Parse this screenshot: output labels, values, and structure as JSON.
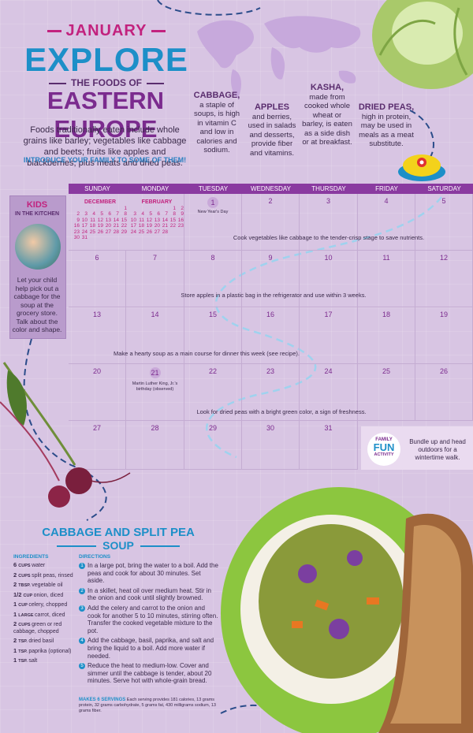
{
  "header": {
    "month": "JANUARY",
    "explore": "EXPLORE",
    "foods_of": "THE FOODS OF",
    "region": "EASTERN EUROPE",
    "intro": "Foods traditionally eaten include whole grains like barley; vegetables like cabbage and beets; fruits like apples and blackberries; plus meats and dried peas.",
    "cta": "INTRODUCE YOUR FAMILY TO SOME OF THEM!"
  },
  "facts": [
    {
      "title": "CABBAGE,",
      "body": "a staple of soups, is high in vitamin C and low in calories and sodium."
    },
    {
      "title": "APPLES",
      "body": "and berries, used in salads and desserts, provide fiber and vitamins."
    },
    {
      "title": "KASHA,",
      "body": "made from cooked whole wheat or barley, is eaten as a side dish or at breakfast."
    },
    {
      "title": "DRIED PEAS,",
      "body": "high in protein, may be used in meals as a meat substitute."
    }
  ],
  "calendar": {
    "days": [
      "SUNDAY",
      "MONDAY",
      "TUESDAY",
      "WEDNESDAY",
      "THURSDAY",
      "FRIDAY",
      "SATURDAY"
    ],
    "week1": [
      "",
      "",
      "1",
      "2",
      "3",
      "4",
      "5"
    ],
    "week2": [
      "6",
      "7",
      "8",
      "9",
      "10",
      "11",
      "12"
    ],
    "week3": [
      "13",
      "14",
      "15",
      "16",
      "17",
      "18",
      "19"
    ],
    "week4": [
      "20",
      "21",
      "22",
      "23",
      "24",
      "25",
      "26"
    ],
    "week5": [
      "27",
      "28",
      "29",
      "30",
      "31"
    ],
    "holiday_new_year": "New Year's Day",
    "holiday_mlk": "Martin Luther King, Jr.'s birthday (observed)",
    "tips": [
      "Cook vegetables like cabbage to the tender-crisp stage to save nutrients.",
      "Store apples in a plastic bag in the refrigerator and use within 3 weeks.",
      "Make a hearty soup as a main course for dinner this week (see recipe).",
      "Look for dried peas with a bright green color, a sign of freshness."
    ]
  },
  "mini_december": {
    "title": "DECEMBER",
    "rows": [
      [
        "",
        "",
        "",
        "",
        "",
        "",
        "1"
      ],
      [
        "2",
        "3",
        "4",
        "5",
        "6",
        "7",
        "8"
      ],
      [
        "9",
        "10",
        "11",
        "12",
        "13",
        "14",
        "15"
      ],
      [
        "16",
        "17",
        "18",
        "19",
        "20",
        "21",
        "22"
      ],
      [
        "23",
        "24",
        "25",
        "26",
        "27",
        "28",
        "29"
      ],
      [
        "30",
        "31",
        "",
        "",
        "",
        "",
        ""
      ]
    ]
  },
  "mini_february": {
    "title": "FEBRUARY",
    "rows": [
      [
        "",
        "",
        "",
        "",
        "",
        "1",
        "2"
      ],
      [
        "3",
        "4",
        "5",
        "6",
        "7",
        "8",
        "9"
      ],
      [
        "10",
        "11",
        "12",
        "13",
        "14",
        "15",
        "16"
      ],
      [
        "17",
        "18",
        "19",
        "20",
        "21",
        "22",
        "23"
      ],
      [
        "24",
        "25",
        "26",
        "27",
        "28",
        "",
        ""
      ]
    ]
  },
  "kids": {
    "title": "KIDS",
    "subtitle": "IN THE KITCHEN",
    "text": "Let your child help pick out a cabbage for the soup at the grocery store. Talk about the color and shape."
  },
  "family_fun": {
    "line1": "FAMILY",
    "line2": "FUN",
    "line3": "ACTIVITY",
    "text": "Bundle up and head outdoors for a wintertime walk."
  },
  "recipe": {
    "title": "CABBAGE AND SPLIT PEA",
    "subtitle": "SOUP",
    "ingredients_label": "INGREDIENTS",
    "directions_label": "DIRECTIONS",
    "ingredients": [
      {
        "qty": "6",
        "unit": "CUPS",
        "item": "water"
      },
      {
        "qty": "2",
        "unit": "CUPS",
        "item": "split peas, rinsed"
      },
      {
        "qty": "2",
        "unit": "TBSP.",
        "item": "vegetable oil"
      },
      {
        "qty": "1/2",
        "unit": "CUP",
        "item": "onion, diced"
      },
      {
        "qty": "1",
        "unit": "CUP",
        "item": "celery, chopped"
      },
      {
        "qty": "1",
        "unit": "LARGE",
        "item": "carrot, diced"
      },
      {
        "qty": "2",
        "unit": "CUPS",
        "item": "green or red cabbage, chopped"
      },
      {
        "qty": "2",
        "unit": "TSP.",
        "item": "dried basil"
      },
      {
        "qty": "1",
        "unit": "TSP.",
        "item": "paprika (optional)"
      },
      {
        "qty": "1",
        "unit": "TSP.",
        "item": "salt"
      }
    ],
    "directions": [
      "In a large pot, bring the water to a boil. Add the peas and cook for about 30 minutes. Set aside.",
      "In a skillet, heat oil over medium heat. Stir in the onion and cook until slightly browned.",
      "Add the celery and carrot to the onion and cook for another 5 to 10 minutes, stirring often. Transfer the cooked vegetable mixture to the pot.",
      "Add the cabbage, basil, paprika, and salt and bring the liquid to a boil. Add more water if needed.",
      "Reduce the heat to medium-low. Cover and simmer until the cabbage is tender, about 20 minutes. Serve hot with whole-grain bread."
    ],
    "servings": "MAKES 6 SERVINGS",
    "nutrition": "Each serving provides 181 calories, 13 grams protein, 32 grams carbohydrate, 5 grams fat, 430 milligrams sodium, 13 grams fiber."
  }
}
